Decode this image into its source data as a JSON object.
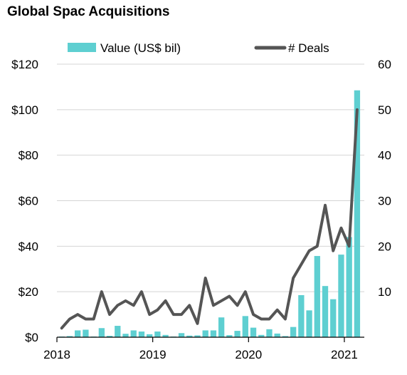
{
  "chart_data": {
    "type": "bar+line",
    "title": "Global Spac Acquisitions",
    "legend": {
      "placement": "top",
      "entries": [
        "Value (US$ bil)",
        "# Deals"
      ]
    },
    "x_axis": {
      "tick_labels": [
        "2018",
        "2019",
        "2020",
        "2021"
      ],
      "start": "2018-01",
      "end": "2021-02"
    },
    "y_left": {
      "ticks": [
        0,
        20,
        40,
        60,
        80,
        100,
        120
      ],
      "tick_labels": [
        "$0",
        "$20",
        "$40",
        "$60",
        "$80",
        "$100",
        "$120"
      ],
      "ylim": [
        0,
        120
      ]
    },
    "y_right": {
      "ticks": [
        10,
        20,
        30,
        40,
        50,
        60
      ],
      "tick_labels": [
        "10",
        "20",
        "30",
        "40",
        "50",
        "60"
      ],
      "ylim": [
        0,
        60
      ]
    },
    "grid": true,
    "months": [
      "2018-01",
      "2018-02",
      "2018-03",
      "2018-04",
      "2018-05",
      "2018-06",
      "2018-07",
      "2018-08",
      "2018-09",
      "2018-10",
      "2018-11",
      "2018-12",
      "2019-01",
      "2019-02",
      "2019-03",
      "2019-04",
      "2019-05",
      "2019-06",
      "2019-07",
      "2019-08",
      "2019-09",
      "2019-10",
      "2019-11",
      "2019-12",
      "2020-01",
      "2020-02",
      "2020-03",
      "2020-04",
      "2020-05",
      "2020-06",
      "2020-07",
      "2020-08",
      "2020-09",
      "2020-10",
      "2020-11",
      "2020-12",
      "2021-01",
      "2021-02"
    ],
    "series": [
      {
        "name": "Value (US$ bil)",
        "type": "bar",
        "axis": "left",
        "color": "#5ecfd1",
        "values": [
          0.3,
          0.5,
          3.0,
          3.3,
          0.3,
          4.0,
          0.6,
          5.0,
          1.5,
          3.0,
          2.5,
          1.3,
          2.5,
          1.0,
          0.3,
          1.8,
          0.7,
          0.8,
          3.0,
          3.0,
          8.7,
          0.9,
          2.8,
          9.3,
          4.2,
          1.0,
          3.5,
          1.6,
          0.5,
          4.5,
          18.5,
          11.8,
          35.7,
          22.5,
          16.7,
          36.3,
          44.0,
          108.5
        ]
      },
      {
        "name": "# Deals",
        "type": "line",
        "axis": "right",
        "color": "#555555",
        "values": [
          2,
          4,
          5,
          4,
          4,
          10,
          5,
          7,
          8,
          7,
          10,
          5,
          6,
          8,
          5,
          5,
          7,
          3,
          13,
          7,
          8,
          9,
          7,
          10,
          5,
          4,
          4,
          6,
          4,
          13,
          16,
          19,
          20,
          29,
          19,
          24,
          20,
          50
        ]
      }
    ]
  }
}
